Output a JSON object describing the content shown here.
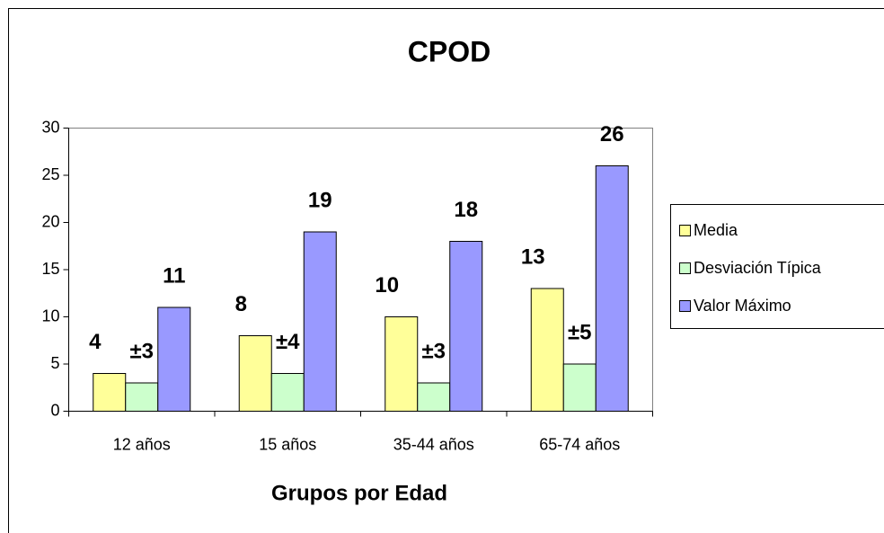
{
  "chart_data": {
    "type": "bar",
    "title": "CPOD",
    "x_label": "Grupos por Edad",
    "categories": [
      "12 años",
      "15 años",
      "35-44 años",
      "65-74 años"
    ],
    "series": [
      {
        "name": "Media",
        "color": "#ffff99",
        "values": [
          4,
          8,
          10,
          13
        ]
      },
      {
        "name": "Desviación Típica",
        "color": "#ccffcc",
        "values": [
          3,
          4,
          3,
          5
        ],
        "value_labels": [
          "±3",
          "±4",
          "±3",
          "±5"
        ]
      },
      {
        "name": "Valor Máximo",
        "color": "#9999ff",
        "values": [
          11,
          19,
          18,
          26
        ]
      }
    ],
    "ylim": [
      0,
      30
    ],
    "yticks": [
      0,
      5,
      10,
      15,
      20,
      25,
      30
    ],
    "grid": false,
    "legend": "right"
  }
}
